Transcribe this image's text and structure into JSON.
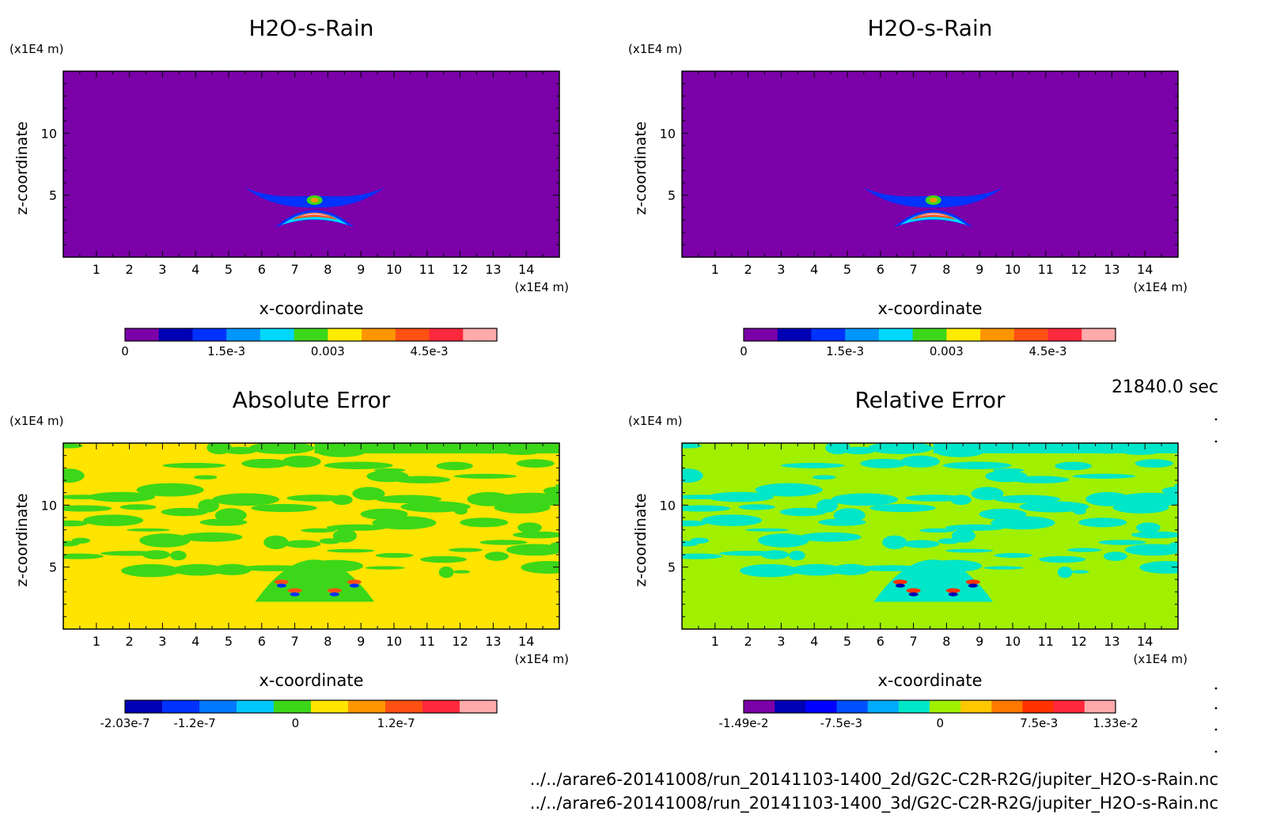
{
  "time_label": "21840.0 sec",
  "files": [
    "../../arare6-20141008/run_20141103-1400_2d/G2C-C2R-R2G/jupiter_H2O-s-Rain.nc",
    "../../arare6-20141008/run_20141103-1400_3d/G2C-C2R-R2G/jupiter_H2O-s-Rain.nc"
  ],
  "chart_data": [
    {
      "type": "heatmap",
      "title": "H2O-s-Rain",
      "xlabel": "x-coordinate",
      "ylabel": "z-coordinate",
      "x_unit": "(x1E4 m)",
      "y_unit": "(x1E4 m)",
      "xlim": [
        0,
        15
      ],
      "ylim": [
        0,
        15
      ],
      "x_ticks": [
        1,
        2,
        3,
        4,
        5,
        6,
        7,
        8,
        9,
        10,
        11,
        12,
        13,
        14
      ],
      "y_ticks": [
        5,
        10
      ],
      "background_level": 0,
      "colorbar": {
        "colors": [
          "#7b00a8",
          "#0000b4",
          "#0032ff",
          "#0096ff",
          "#00d7ff",
          "#3cd719",
          "#ffeb00",
          "#ff9600",
          "#ff5014",
          "#ff283c",
          "#ffaaaa"
        ],
        "tick_labels": [
          "0",
          "1.5e-3",
          "0.003",
          "4.5e-3"
        ],
        "tick_values": [
          0,
          0.0015,
          0.003,
          0.0045
        ],
        "range": [
          0,
          0.0055
        ]
      }
    },
    {
      "type": "heatmap",
      "title": "H2O-s-Rain",
      "xlabel": "x-coordinate",
      "ylabel": "z-coordinate",
      "x_unit": "(x1E4 m)",
      "y_unit": "(x1E4 m)",
      "xlim": [
        0,
        15
      ],
      "ylim": [
        0,
        15
      ],
      "x_ticks": [
        1,
        2,
        3,
        4,
        5,
        6,
        7,
        8,
        9,
        10,
        11,
        12,
        13,
        14
      ],
      "y_ticks": [
        5,
        10
      ],
      "background_level": 0,
      "colorbar": {
        "colors": [
          "#7b00a8",
          "#0000b4",
          "#0032ff",
          "#0096ff",
          "#00d7ff",
          "#3cd719",
          "#ffeb00",
          "#ff9600",
          "#ff5014",
          "#ff283c",
          "#ffaaaa"
        ],
        "tick_labels": [
          "0",
          "1.5e-3",
          "0.003",
          "4.5e-3"
        ],
        "tick_values": [
          0,
          0.0015,
          0.003,
          0.0045
        ],
        "range": [
          0,
          0.0055
        ]
      }
    },
    {
      "type": "heatmap",
      "title": "Absolute Error",
      "xlabel": "x-coordinate",
      "ylabel": "z-coordinate",
      "x_unit": "(x1E4 m)",
      "y_unit": "(x1E4 m)",
      "xlim": [
        0,
        15
      ],
      "ylim": [
        0,
        15
      ],
      "x_ticks": [
        1,
        2,
        3,
        4,
        5,
        6,
        7,
        8,
        9,
        10,
        11,
        12,
        13,
        14
      ],
      "y_ticks": [
        5,
        10
      ],
      "background_color": "#ffe400",
      "patch_color": "#3cd719",
      "colorbar": {
        "colors": [
          "#0000b4",
          "#0032ff",
          "#0078ff",
          "#00c8ff",
          "#3cd719",
          "#ffe400",
          "#ff9600",
          "#ff5014",
          "#ff283c",
          "#ffaaaa"
        ],
        "tick_labels": [
          "-2.03e-7",
          "-1.2e-7",
          "0",
          "1.2e-7"
        ],
        "tick_values": [
          -2.03e-07,
          -1.2e-07,
          0,
          1.2e-07
        ],
        "range": [
          -2.03e-07,
          2.4e-07
        ]
      }
    },
    {
      "type": "heatmap",
      "title": "Relative Error",
      "xlabel": "x-coordinate",
      "ylabel": "z-coordinate",
      "x_unit": "(x1E4 m)",
      "y_unit": "(x1E4 m)",
      "xlim": [
        0,
        15
      ],
      "ylim": [
        0,
        15
      ],
      "x_ticks": [
        1,
        2,
        3,
        4,
        5,
        6,
        7,
        8,
        9,
        10,
        11,
        12,
        13,
        14
      ],
      "y_ticks": [
        5,
        10
      ],
      "background_color": "#a0f000",
      "patch_color": "#00e6c8",
      "colorbar": {
        "colors": [
          "#7b00a8",
          "#0000b4",
          "#0000ff",
          "#0050ff",
          "#00aaff",
          "#00e6c8",
          "#a0f000",
          "#ffc800",
          "#ff7800",
          "#ff3200",
          "#ff283c",
          "#ffaaaa"
        ],
        "tick_labels": [
          "-1.49e-2",
          "-7.5e-3",
          "0",
          "7.5e-3",
          "1.33e-2"
        ],
        "tick_values": [
          -0.0149,
          -0.0075,
          0,
          0.0075,
          0.0133
        ],
        "range": [
          -0.0149,
          0.0133
        ]
      }
    }
  ]
}
